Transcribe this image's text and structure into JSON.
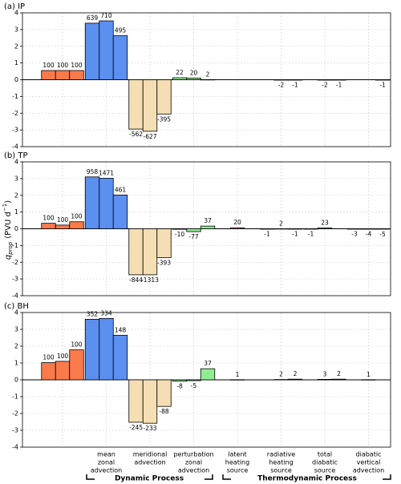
{
  "chart_data": [
    {
      "type": "bar",
      "title": "(a) IP",
      "ylim": [
        -4,
        4
      ],
      "yticks": [
        -4,
        -3,
        -2,
        -1,
        0,
        1,
        2,
        3,
        4
      ],
      "grid": true,
      "values": [
        [
          0.55,
          0.55,
          0.55
        ],
        [
          3.38,
          3.52,
          2.63
        ],
        [
          -2.95,
          -3.08,
          -2.05
        ],
        [
          0.12,
          0.1,
          0.01
        ],
        [
          null,
          null,
          null
        ],
        [
          null,
          -0.01,
          -0.005
        ],
        [
          null,
          -0.01,
          -0.005
        ],
        [
          null,
          null,
          -0.005
        ]
      ],
      "value_labels": [
        [
          "100",
          "100",
          "100"
        ],
        [
          "639",
          "710",
          "495"
        ],
        [
          "-562",
          "-627",
          "-395"
        ],
        [
          "22",
          "20",
          "2"
        ],
        [
          null,
          null,
          null
        ],
        [
          null,
          "-2",
          "-1"
        ],
        [
          null,
          "-2",
          "-1"
        ],
        [
          null,
          null,
          "-1"
        ]
      ]
    },
    {
      "type": "bar",
      "title": "(b) TP",
      "ylim": [
        -4,
        4
      ],
      "yticks": [
        -4,
        -3,
        -2,
        -1,
        0,
        1,
        2,
        3,
        4
      ],
      "grid": true,
      "values": [
        [
          0.33,
          0.22,
          0.42
        ],
        [
          3.1,
          3.02,
          2.02
        ],
        [
          -2.75,
          -2.75,
          -1.72
        ],
        [
          -0.03,
          -0.17,
          0.16
        ],
        [
          null,
          0.06,
          null
        ],
        [
          -0.003,
          0.005,
          -0.004
        ],
        [
          -0.003,
          0.05,
          null
        ],
        [
          -0.01,
          -0.01,
          -0.02
        ]
      ],
      "value_labels": [
        [
          "100",
          "100",
          "100"
        ],
        [
          "958",
          "1471",
          "461"
        ],
        [
          "-844",
          "-1313",
          "-393"
        ],
        [
          "-10",
          "-77",
          "37"
        ],
        [
          null,
          "20",
          null
        ],
        [
          "-1",
          "2",
          "-1"
        ],
        [
          "-1",
          "23",
          null
        ],
        [
          "-3",
          "-4",
          "-5"
        ]
      ]
    },
    {
      "type": "bar",
      "title": "(c) BH",
      "ylim": [
        -4,
        4
      ],
      "yticks": [
        -4,
        -3,
        -2,
        -1,
        0,
        1,
        2,
        3,
        4
      ],
      "grid": true,
      "values": [
        [
          1.02,
          1.1,
          1.78
        ],
        [
          3.6,
          3.65,
          2.65
        ],
        [
          -2.52,
          -2.58,
          -1.58
        ],
        [
          -0.08,
          -0.05,
          0.66
        ],
        [
          null,
          0.01,
          null
        ],
        [
          null,
          0.02,
          0.04
        ],
        [
          null,
          0.03,
          0.04
        ],
        [
          null,
          0.01,
          null
        ]
      ],
      "value_labels": [
        [
          "100",
          "100",
          "100"
        ],
        [
          "352",
          "334",
          "148"
        ],
        [
          "-245",
          "-233",
          "-88"
        ],
        [
          "-8",
          "-5",
          "37"
        ],
        [
          null,
          "1",
          null
        ],
        [
          null,
          "2",
          "2"
        ],
        [
          null,
          "3",
          "2"
        ],
        [
          null,
          "1",
          null
        ]
      ]
    }
  ],
  "categories": [
    null,
    [
      "mean",
      "zonal",
      "advection"
    ],
    [
      "meridional",
      "advection"
    ],
    [
      "perturbation",
      "zonal",
      "advection"
    ],
    [
      "latent",
      "heating",
      "source"
    ],
    [
      "radiative",
      "heating",
      "source"
    ],
    [
      "total",
      "diabatic",
      "source"
    ],
    [
      "diabatic",
      "vertical",
      "advection"
    ]
  ],
  "colors": [
    "#fa7a4c",
    "#5b8ff0",
    "#f5deb3",
    "#90ee90",
    "#ff9999",
    "#c5b0d5",
    "#9edae5",
    "#dbdb8d"
  ],
  "ylabel": [
    "q",
    "prop",
    "(PVU  d",
    "−1",
    ")"
  ],
  "process_labels": [
    "Dynamic Process",
    "Thermodynamic Process"
  ]
}
